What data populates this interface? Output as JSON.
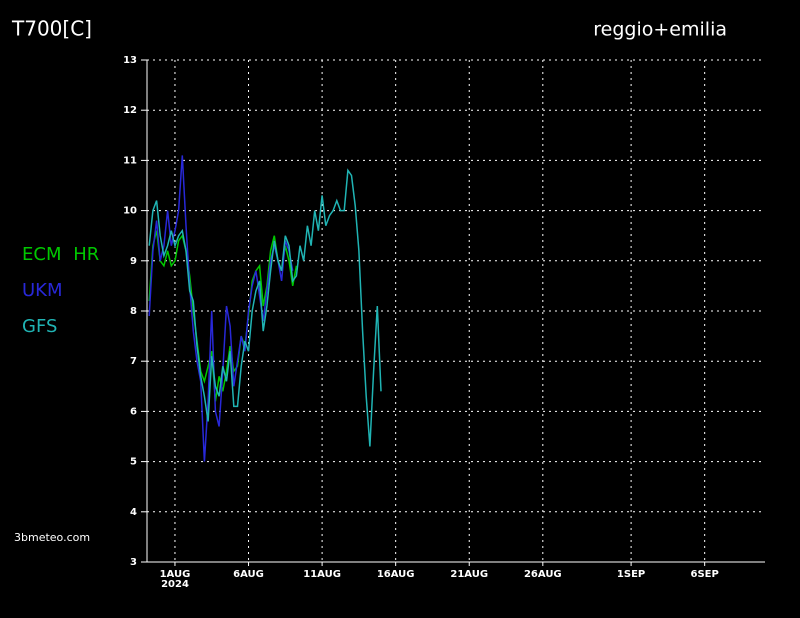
{
  "chart_data": {
    "type": "line",
    "title": "T700[C]",
    "subtitle": "reggio+emilia",
    "source": "3bmeteo.com",
    "x_sublabel": "2024",
    "x": [
      -1.75,
      -1.5,
      -1.25,
      -1,
      -0.75,
      -0.5,
      -0.25,
      0,
      0.25,
      0.5,
      0.75,
      1,
      1.25,
      1.5,
      1.75,
      2,
      2.25,
      2.5,
      2.75,
      3,
      3.25,
      3.5,
      3.75,
      4,
      4.25,
      4.5,
      4.75,
      5,
      5.25,
      5.5,
      5.75,
      6,
      6.25,
      6.5,
      6.75,
      7,
      7.25,
      7.5,
      7.75,
      8,
      8.25,
      8.5,
      8.75,
      9,
      9.25,
      9.5,
      9.75,
      10,
      10.25,
      10.5,
      10.75,
      11,
      11.25,
      11.5,
      11.75,
      12,
      12.25,
      12.5,
      12.75,
      13,
      13.25,
      13.5,
      13.75,
      14
    ],
    "series": [
      {
        "name": "ECM HR",
        "color": "#00c800",
        "values": [
          8.2,
          9.3,
          9.6,
          9.0,
          8.9,
          9.2,
          8.9,
          9.0,
          9.4,
          9.5,
          9.2,
          8.7,
          8.0,
          7.4,
          6.8,
          6.6,
          6.9,
          7.2,
          6.2,
          6.7,
          6.4,
          6.8,
          7.3,
          6.8,
          6.9,
          7.5,
          7.3,
          7.9,
          8.6,
          8.8,
          8.9,
          8.1,
          8.5,
          9.2,
          9.5,
          9.0,
          8.8,
          9.3,
          9.0,
          8.5,
          8.9,
          null,
          null,
          null,
          null,
          null,
          null,
          null,
          null,
          null,
          null,
          null,
          null,
          null,
          null,
          null,
          null,
          null,
          null,
          null,
          null,
          null,
          null,
          null
        ]
      },
      {
        "name": "UKM",
        "color": "#2828d8",
        "values": [
          7.9,
          9.2,
          9.8,
          9.0,
          9.3,
          10.0,
          9.3,
          9.6,
          10.0,
          11.1,
          9.7,
          8.5,
          7.6,
          7.0,
          6.6,
          5.0,
          6.2,
          8.0,
          6.0,
          5.7,
          6.8,
          8.1,
          7.7,
          6.5,
          7.0,
          7.5,
          7.2,
          8.0,
          8.5,
          8.8,
          8.3,
          7.8,
          8.4,
          9.0,
          9.3,
          9.0,
          8.6,
          9.4,
          9.2,
          8.8,
          null,
          null,
          null,
          null,
          null,
          null,
          null,
          null,
          null,
          null,
          null,
          null,
          null,
          null,
          null,
          null,
          null,
          null,
          null,
          null,
          null,
          null,
          null,
          null
        ]
      },
      {
        "name": "GFS",
        "color": "#20b4b4",
        "values": [
          9.3,
          10.0,
          10.2,
          9.5,
          9.1,
          9.3,
          9.6,
          9.3,
          9.5,
          9.6,
          9.2,
          8.4,
          8.2,
          7.3,
          6.7,
          6.3,
          5.8,
          7.1,
          6.5,
          6.3,
          6.9,
          6.6,
          7.2,
          6.1,
          6.1,
          6.9,
          7.4,
          7.2,
          8.0,
          8.4,
          8.6,
          7.6,
          8.1,
          8.8,
          9.4,
          9.0,
          8.8,
          9.5,
          9.3,
          8.6,
          8.7,
          9.3,
          9.0,
          9.7,
          9.3,
          10.0,
          9.6,
          10.3,
          9.7,
          9.9,
          10.0,
          10.2,
          10.0,
          10.0,
          10.8,
          10.7,
          10.1,
          9.2,
          7.6,
          6.3,
          5.3,
          6.8,
          8.1,
          6.4
        ]
      }
    ],
    "xlim": [
      -1.9,
      40.1
    ],
    "xticks": [
      {
        "value": 0,
        "label": "1AUG"
      },
      {
        "value": 5,
        "label": "6AUG"
      },
      {
        "value": 10,
        "label": "11AUG"
      },
      {
        "value": 15,
        "label": "16AUG"
      },
      {
        "value": 20,
        "label": "21AUG"
      },
      {
        "value": 25,
        "label": "26AUG"
      },
      {
        "value": 31,
        "label": "1SEP"
      },
      {
        "value": 36,
        "label": "6SEP"
      }
    ],
    "ylim": [
      3,
      13
    ],
    "yticks": [
      3,
      4,
      5,
      6,
      7,
      8,
      9,
      10,
      11,
      12,
      13
    ],
    "grid": true,
    "legend": "left"
  }
}
